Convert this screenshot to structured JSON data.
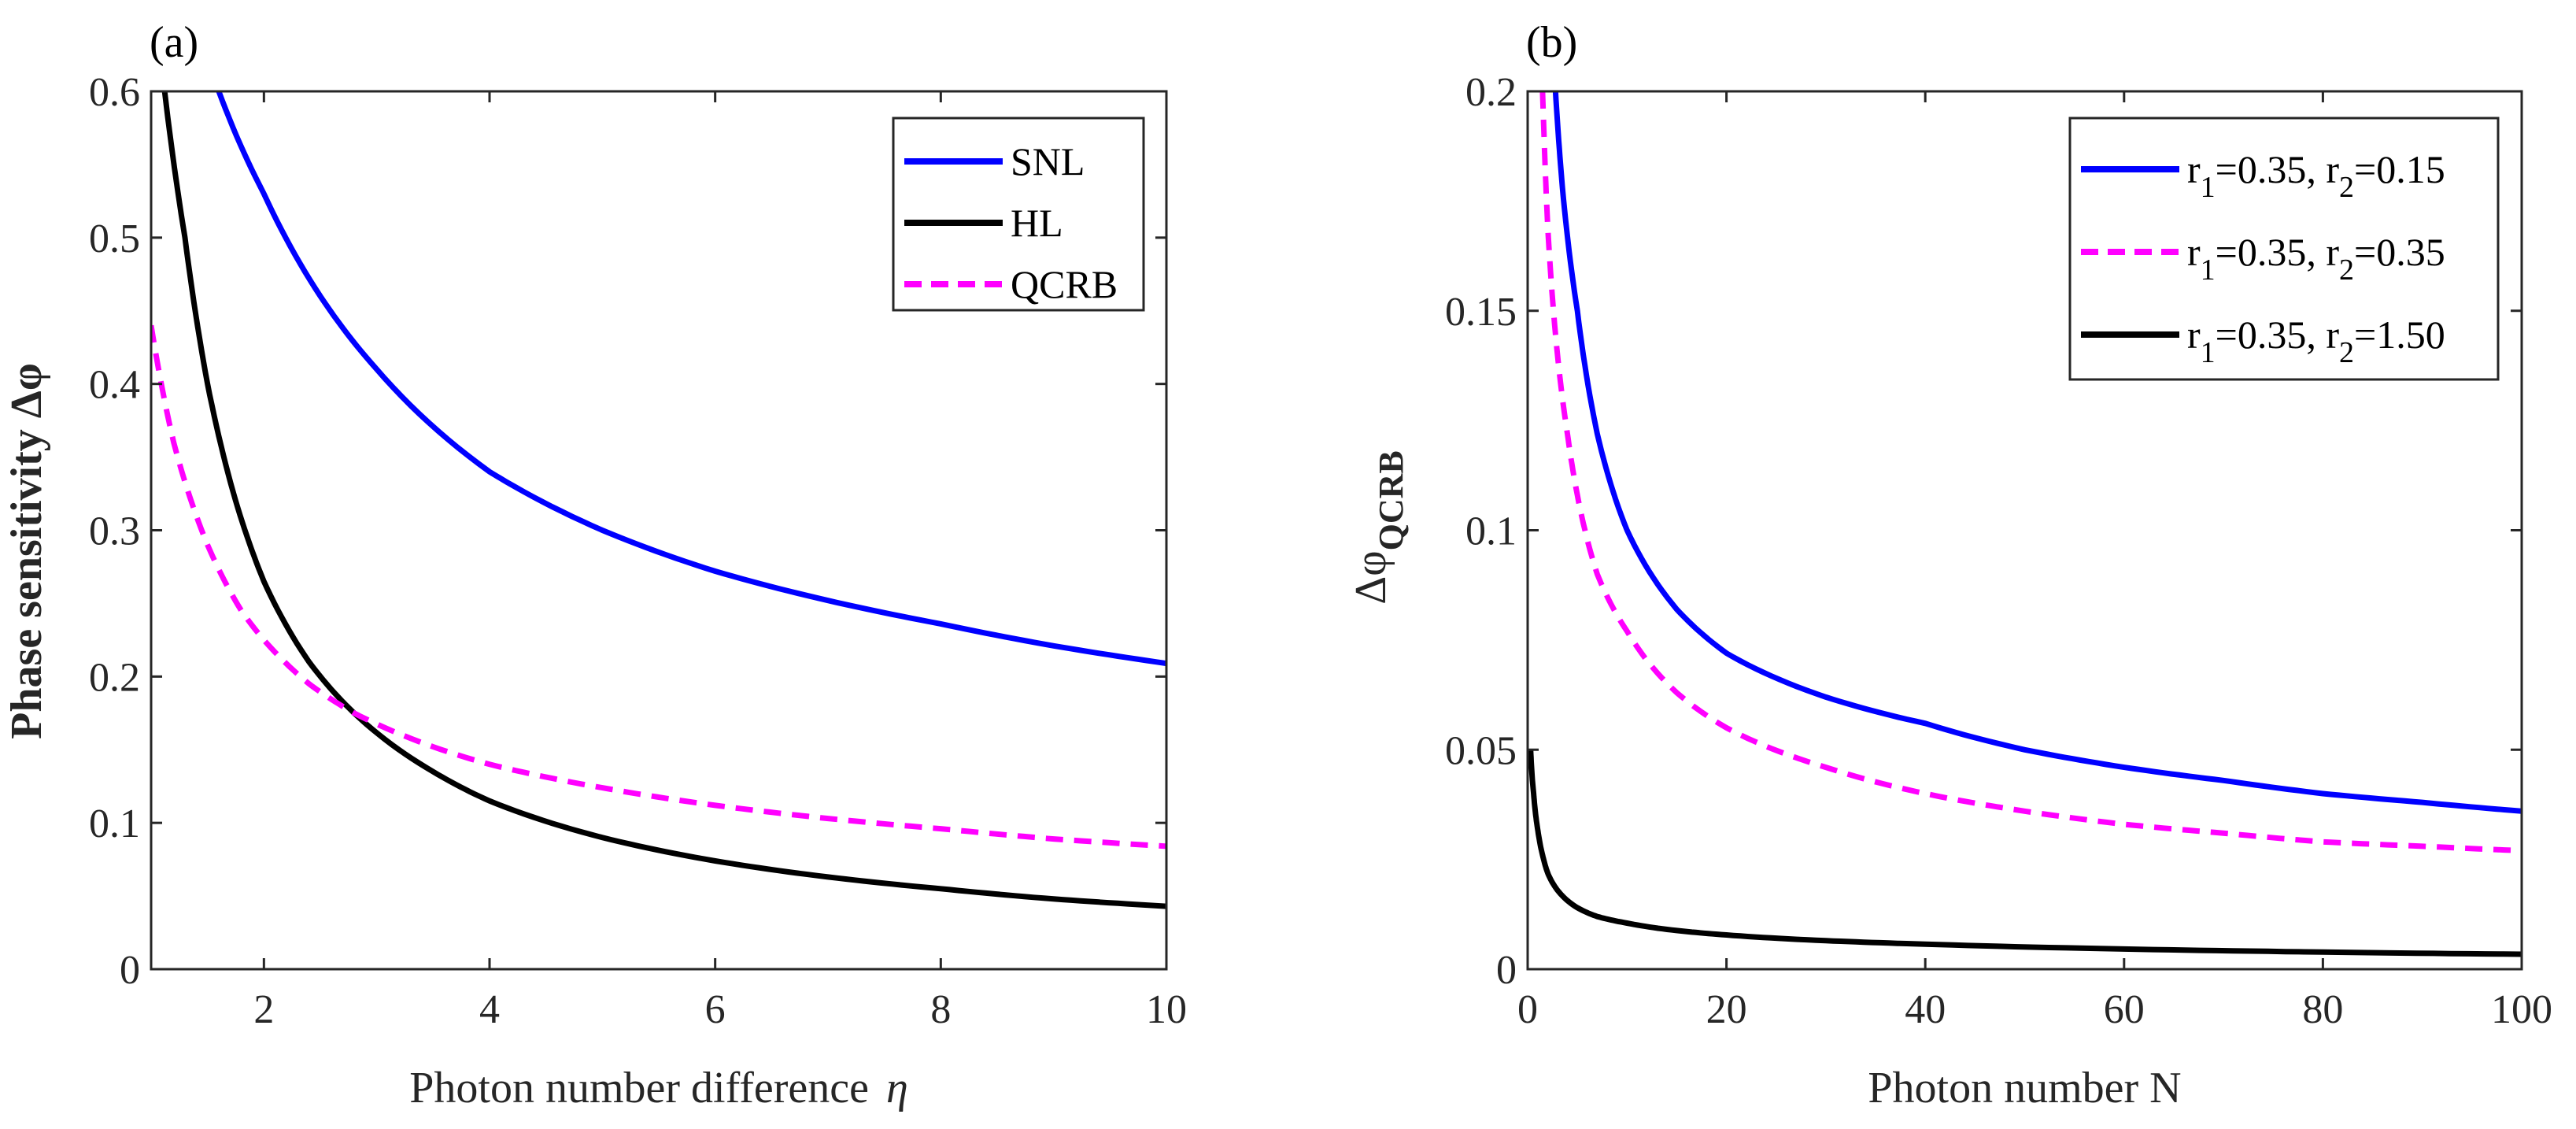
{
  "chart_data": [
    {
      "type": "line",
      "panel_label": "(a)",
      "xlabel": "Photon number difference",
      "xlabel_symbol": "η",
      "ylabel": "Phase sensitivity Δφ",
      "xlim": [
        1,
        10
      ],
      "ylim": [
        0,
        0.6
      ],
      "xticks": [
        2,
        4,
        6,
        8,
        10
      ],
      "yticks": [
        0,
        0.1,
        0.2,
        0.3,
        0.4,
        0.5,
        0.6
      ],
      "grid": false,
      "legend_position": "top-right",
      "series": [
        {
          "name": "SNL",
          "color": "#0000ff",
          "dash": "solid",
          "x": [
            1.6,
            2,
            2.5,
            3,
            4,
            5,
            6,
            7,
            8,
            9,
            10
          ],
          "y": [
            0.6,
            0.53,
            0.46,
            0.41,
            0.34,
            0.3,
            0.272,
            0.252,
            0.236,
            0.221,
            0.209
          ]
        },
        {
          "name": "HL",
          "color": "#000000",
          "dash": "solid",
          "x": [
            1.12,
            1.3,
            1.5,
            1.75,
            2,
            2.4,
            2.8,
            3.5,
            4,
            5,
            6,
            7,
            8,
            9,
            10
          ],
          "y": [
            0.6,
            0.5,
            0.4,
            0.32,
            0.265,
            0.21,
            0.175,
            0.135,
            0.115,
            0.09,
            0.074,
            0.063,
            0.055,
            0.048,
            0.043
          ]
        },
        {
          "name": "QCRB",
          "color": "#ff00ff",
          "dash": "dashed",
          "x": [
            1,
            1.2,
            1.5,
            1.8,
            2,
            2.4,
            2.8,
            3.5,
            4,
            5,
            6,
            7,
            8,
            9,
            10
          ],
          "y": [
            0.44,
            0.36,
            0.29,
            0.245,
            0.225,
            0.195,
            0.175,
            0.152,
            0.14,
            0.124,
            0.112,
            0.103,
            0.096,
            0.089,
            0.084
          ]
        }
      ]
    },
    {
      "type": "line",
      "panel_label": "(b)",
      "xlabel": "Photon number N",
      "ylabel": "Δφ",
      "ylabel_subscript": "QCRB",
      "xlim": [
        0,
        100
      ],
      "ylim": [
        0,
        0.2
      ],
      "xticks": [
        0,
        20,
        40,
        60,
        80,
        100
      ],
      "yticks": [
        0,
        0.05,
        0.1,
        0.15,
        0.2
      ],
      "grid": false,
      "legend_position": "top-right",
      "series": [
        {
          "name": "r1=0.35, r2=0.15",
          "color": "#0000ff",
          "dash": "solid",
          "x": [
            2.8,
            3.5,
            5,
            7,
            10,
            15,
            20,
            30,
            40,
            50,
            60,
            70,
            80,
            90,
            100
          ],
          "y": [
            0.2,
            0.178,
            0.15,
            0.122,
            0.1,
            0.082,
            0.072,
            0.062,
            0.056,
            0.05,
            0.046,
            0.043,
            0.04,
            0.038,
            0.036
          ]
        },
        {
          "name": "r1=0.35, r2=0.35",
          "color": "#ff00ff",
          "dash": "dashed",
          "x": [
            1.5,
            2,
            3,
            4,
            5,
            7,
            10,
            15,
            20,
            30,
            40,
            50,
            60,
            70,
            80,
            90,
            100
          ],
          "y": [
            0.2,
            0.17,
            0.14,
            0.122,
            0.108,
            0.09,
            0.077,
            0.063,
            0.055,
            0.046,
            0.04,
            0.036,
            0.033,
            0.031,
            0.029,
            0.028,
            0.027
          ]
        },
        {
          "name": "r1=0.35, r2=1.50",
          "color": "#000000",
          "dash": "solid",
          "x": [
            0.3,
            0.6,
            1,
            1.5,
            2,
            3,
            5,
            7,
            10,
            15,
            20,
            30,
            40,
            60,
            80,
            100
          ],
          "y": [
            0.05,
            0.04,
            0.032,
            0.026,
            0.022,
            0.018,
            0.014,
            0.012,
            0.0105,
            0.0088,
            0.0078,
            0.0065,
            0.0057,
            0.0046,
            0.0039,
            0.0034
          ]
        }
      ]
    }
  ]
}
